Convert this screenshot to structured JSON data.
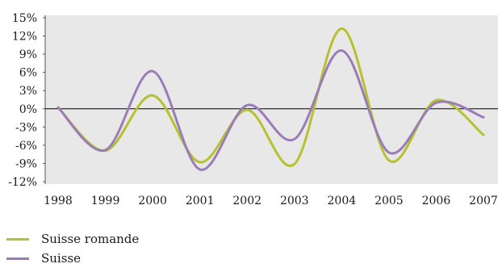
{
  "chart_data": {
    "type": "line",
    "x": [
      "1998",
      "1999",
      "2000",
      "2001",
      "2002",
      "2003",
      "2004",
      "2005",
      "2006",
      "2007"
    ],
    "y_ticks": [
      "15%",
      "12%",
      "9%",
      "6%",
      "3%",
      "0%",
      "-3%",
      "-6%",
      "-9%",
      "-12%"
    ],
    "ylim": [
      -12,
      15
    ],
    "grid": false,
    "legend_position": "bottom-left",
    "series": [
      {
        "name": "Suisse romande",
        "color": "#b5c12e",
        "values": [
          0.2,
          -6.9,
          2.2,
          -8.8,
          -0.2,
          -9.1,
          13.2,
          -8.5,
          1.4,
          -4.3
        ]
      },
      {
        "name": "Suisse",
        "color": "#9b7bb8",
        "values": [
          0.2,
          -6.8,
          6.2,
          -10.0,
          0.6,
          -5.0,
          9.6,
          -7.2,
          1.0,
          -1.4
        ]
      }
    ]
  }
}
